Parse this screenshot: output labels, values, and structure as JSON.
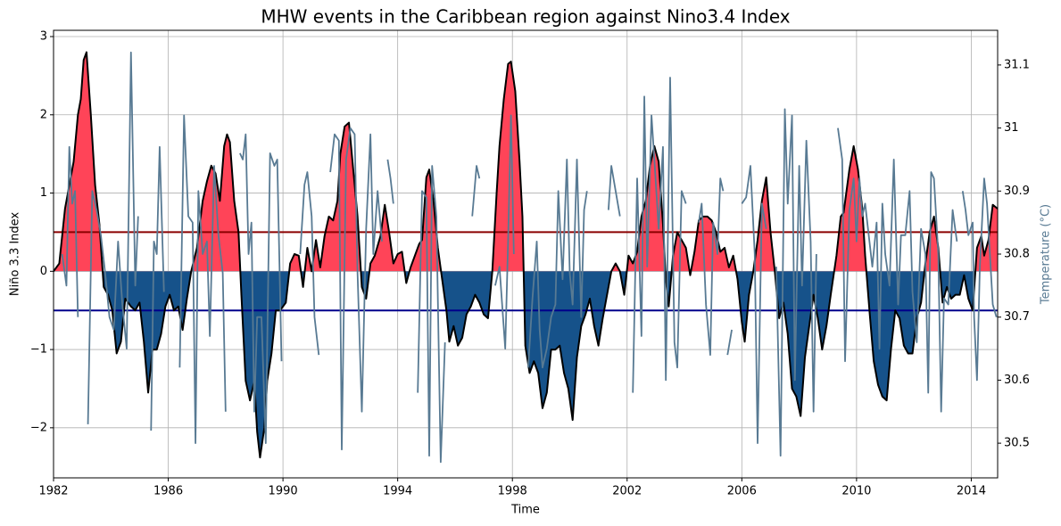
{
  "chart_data": {
    "type": "line",
    "title": "MHW events in the Caribbean region against Nino3.4 Index",
    "xlabel": "Time",
    "ylabel": "Niño 3.3 Index",
    "y2label": "Temperature (°C)",
    "y2label_color": "#587a93",
    "xlim": [
      1982,
      2014.92
    ],
    "xticks": [
      1982,
      1986,
      1990,
      1994,
      1998,
      2002,
      2006,
      2010,
      2014
    ],
    "ylim": [
      -2.64,
      3.08
    ],
    "yticks": [
      {
        "value": -2,
        "label": "−2"
      },
      {
        "value": -1,
        "label": "−1"
      },
      0,
      1,
      2,
      3
    ],
    "y2lim": [
      30.445,
      31.155
    ],
    "y2ticks": [
      30.5,
      30.6,
      30.7,
      30.8,
      30.9,
      31.0,
      31.1
    ],
    "grid": true,
    "hlines": [
      {
        "value": 0.5,
        "color": "#8b0000"
      },
      {
        "value": -0.5,
        "color": "#00008b"
      }
    ],
    "series": [
      {
        "name": "Niño 3.3 Index",
        "color": "#000000",
        "fill": {
          "positive": "#ff4458",
          "negative": "#16528a"
        },
        "x": [
          1982.0,
          1982.2,
          1982.4,
          1982.55,
          1982.7,
          1982.85,
          1982.95,
          1983.05,
          1983.15,
          1983.3,
          1983.45,
          1983.6,
          1983.75,
          1983.9,
          1984.05,
          1984.2,
          1984.35,
          1984.5,
          1984.7,
          1984.85,
          1985.0,
          1985.15,
          1985.3,
          1985.45,
          1985.6,
          1985.75,
          1985.9,
          1986.05,
          1986.2,
          1986.35,
          1986.5,
          1986.65,
          1986.8,
          1987.0,
          1987.2,
          1987.35,
          1987.5,
          1987.65,
          1987.8,
          1987.95,
          1988.05,
          1988.15,
          1988.3,
          1988.45,
          1988.55,
          1988.7,
          1988.85,
          1989.0,
          1989.1,
          1989.2,
          1989.35,
          1989.45,
          1989.6,
          1989.75,
          1989.9,
          1990.1,
          1990.25,
          1990.4,
          1990.55,
          1990.7,
          1990.85,
          1991.0,
          1991.15,
          1991.3,
          1991.45,
          1991.6,
          1991.75,
          1991.9,
          1992.0,
          1992.15,
          1992.3,
          1992.45,
          1992.6,
          1992.75,
          1992.9,
          1993.05,
          1993.2,
          1993.4,
          1993.55,
          1993.7,
          1993.85,
          1994.0,
          1994.15,
          1994.3,
          1994.45,
          1994.6,
          1994.75,
          1994.85,
          1995.0,
          1995.1,
          1995.25,
          1995.4,
          1995.55,
          1995.7,
          1995.8,
          1995.95,
          1996.1,
          1996.25,
          1996.4,
          1996.55,
          1996.7,
          1996.85,
          1997.0,
          1997.15,
          1997.3,
          1997.45,
          1997.55,
          1997.7,
          1997.85,
          1997.95,
          1998.1,
          1998.25,
          1998.35,
          1998.45,
          1998.6,
          1998.75,
          1998.9,
          1999.05,
          1999.2,
          1999.35,
          1999.5,
          1999.65,
          1999.8,
          1999.95,
          2000.1,
          2000.25,
          2000.4,
          2000.55,
          2000.7,
          2000.85,
          2001.0,
          2001.15,
          2001.3,
          2001.45,
          2001.6,
          2001.75,
          2001.9,
          2002.05,
          2002.2,
          2002.35,
          2002.5,
          2002.65,
          2002.8,
          2002.95,
          2003.1,
          2003.25,
          2003.35,
          2003.45,
          2003.6,
          2003.75,
          2003.9,
          2004.05,
          2004.2,
          2004.35,
          2004.5,
          2004.65,
          2004.8,
          2004.95,
          2005.1,
          2005.25,
          2005.4,
          2005.55,
          2005.7,
          2005.85,
          2006.0,
          2006.1,
          2006.25,
          2006.4,
          2006.55,
          2006.7,
          2006.85,
          2007.0,
          2007.15,
          2007.3,
          2007.45,
          2007.6,
          2007.75,
          2007.9,
          2008.05,
          2008.2,
          2008.35,
          2008.5,
          2008.65,
          2008.8,
          2008.95,
          2009.1,
          2009.3,
          2009.45,
          2009.55,
          2009.75,
          2009.9,
          2010.05,
          2010.2,
          2010.3,
          2010.45,
          2010.6,
          2010.75,
          2010.9,
          2011.05,
          2011.2,
          2011.35,
          2011.5,
          2011.65,
          2011.8,
          2011.95,
          2012.1,
          2012.25,
          2012.4,
          2012.55,
          2012.7,
          2012.85,
          2013.0,
          2013.15,
          2013.3,
          2013.45,
          2013.6,
          2013.75,
          2013.9,
          2014.05,
          2014.2,
          2014.35,
          2014.45,
          2014.6,
          2014.75,
          2014.92
        ],
        "values": [
          0.0,
          0.1,
          0.8,
          1.1,
          1.4,
          2.0,
          2.2,
          2.7,
          2.8,
          2.0,
          1.1,
          0.6,
          -0.2,
          -0.3,
          -0.5,
          -1.05,
          -0.9,
          -0.35,
          -0.45,
          -0.5,
          -0.4,
          -0.9,
          -1.55,
          -1.0,
          -1.0,
          -0.8,
          -0.45,
          -0.3,
          -0.5,
          -0.45,
          -0.75,
          -0.35,
          0.0,
          0.3,
          0.9,
          1.15,
          1.35,
          1.25,
          0.9,
          1.6,
          1.75,
          1.65,
          0.9,
          0.5,
          -0.3,
          -1.4,
          -1.65,
          -1.4,
          -2.05,
          -2.38,
          -2.0,
          -1.4,
          -1.05,
          -0.5,
          -0.5,
          -0.4,
          0.1,
          0.22,
          0.2,
          -0.2,
          0.3,
          0.0,
          0.4,
          0.05,
          0.45,
          0.7,
          0.65,
          0.9,
          1.5,
          1.85,
          1.9,
          1.3,
          0.7,
          -0.2,
          -0.35,
          0.1,
          0.2,
          0.45,
          0.85,
          0.5,
          0.1,
          0.22,
          0.25,
          -0.15,
          0.05,
          0.2,
          0.35,
          0.4,
          1.2,
          1.3,
          0.9,
          0.3,
          -0.1,
          -0.5,
          -0.9,
          -0.7,
          -0.95,
          -0.85,
          -0.55,
          -0.45,
          -0.3,
          -0.4,
          -0.55,
          -0.6,
          0.0,
          1.0,
          1.6,
          2.2,
          2.65,
          2.68,
          2.3,
          1.4,
          0.7,
          -0.95,
          -1.3,
          -1.15,
          -1.3,
          -1.75,
          -1.55,
          -1.0,
          -1.0,
          -0.95,
          -1.3,
          -1.5,
          -1.9,
          -1.1,
          -0.7,
          -0.55,
          -0.35,
          -0.7,
          -0.95,
          -0.6,
          -0.3,
          0.0,
          0.1,
          0.0,
          -0.3,
          0.2,
          0.1,
          0.25,
          0.7,
          0.9,
          1.35,
          1.6,
          1.4,
          0.6,
          -0.1,
          -0.45,
          0.2,
          0.5,
          0.4,
          0.3,
          -0.05,
          0.25,
          0.65,
          0.7,
          0.7,
          0.65,
          0.5,
          0.25,
          0.3,
          0.05,
          0.2,
          -0.1,
          -0.65,
          -0.9,
          -0.3,
          0.0,
          0.4,
          0.9,
          1.2,
          0.5,
          0.0,
          -0.6,
          -0.4,
          -0.8,
          -1.5,
          -1.6,
          -1.85,
          -1.1,
          -0.7,
          -0.3,
          -0.6,
          -1.0,
          -0.7,
          -0.3,
          0.2,
          0.7,
          0.75,
          1.3,
          1.6,
          1.3,
          0.8,
          0.2,
          -0.5,
          -1.15,
          -1.45,
          -1.6,
          -1.65,
          -1.0,
          -0.5,
          -0.6,
          -0.95,
          -1.05,
          -1.05,
          -0.6,
          -0.4,
          0.1,
          0.5,
          0.7,
          0.3,
          -0.4,
          -0.2,
          -0.35,
          -0.3,
          -0.3,
          -0.05,
          -0.35,
          -0.5,
          0.3,
          0.45,
          0.2,
          0.4,
          0.85,
          0.8
        ]
      },
      {
        "name": "Temperature (°C)",
        "color": "#587a93",
        "axis": "y2",
        "x": [
          1982.3,
          1982.45,
          1982.55,
          1982.65,
          1982.75,
          1982.85,
          1982.95,
          1983.2,
          1983.35,
          1983.5,
          1983.65,
          1983.8,
          1983.95,
          1984.1,
          1984.25,
          1984.4,
          1984.55,
          1984.7,
          1984.85,
          1984.95,
          1985.05,
          1985.4,
          1985.5,
          1985.6,
          1985.7,
          1985.85,
          1986.0,
          1986.4,
          1986.55,
          1986.7,
          1986.85,
          1986.95,
          1987.05,
          1987.2,
          1987.35,
          1987.45,
          1987.6,
          1987.75,
          1987.9,
          1988.0,
          1988.1,
          1988.5,
          1988.6,
          1988.7,
          1988.8,
          1988.9,
          1989.0,
          1989.1,
          1989.25,
          1989.4,
          1989.55,
          1989.7,
          1989.8,
          1989.95,
          1990.05,
          1990.6,
          1990.75,
          1990.85,
          1991.0,
          1991.1,
          1991.25,
          1991.35,
          1991.65,
          1991.8,
          1991.95,
          1992.05,
          1992.2,
          1992.35,
          1992.5,
          1992.6,
          1992.75,
          1992.9,
          1993.05,
          1993.15,
          1993.3,
          1993.45,
          1993.55,
          1993.65,
          1993.75,
          1993.85,
          1993.95,
          1994.7,
          1994.85,
          1995.0,
          1995.1,
          1995.2,
          1995.35,
          1995.5,
          1995.65,
          1995.75,
          1996.6,
          1996.75,
          1996.85,
          1996.95,
          1997.4,
          1997.55,
          1997.75,
          1997.85,
          1997.95,
          1998.05,
          1998.2,
          1998.55,
          1998.7,
          1998.85,
          1998.95,
          1999.05,
          1999.2,
          1999.35,
          1999.5,
          1999.6,
          1999.75,
          1999.9,
          2000.0,
          2000.1,
          2000.25,
          2000.4,
          2000.5,
          2000.6,
          2000.75,
          2001.35,
          2001.45,
          2001.6,
          2001.75,
          2001.85,
          2002.2,
          2002.35,
          2002.5,
          2002.6,
          2002.7,
          2002.85,
          2002.95,
          2003.1,
          2003.25,
          2003.35,
          2003.5,
          2003.65,
          2003.75,
          2003.9,
          2004.05,
          2004.2,
          2004.5,
          2004.6,
          2004.75,
          2004.9,
          2005.0,
          2005.15,
          2005.25,
          2005.35,
          2005.45,
          2005.5,
          2005.65,
          2005.75,
          2006.0,
          2006.15,
          2006.3,
          2006.45,
          2006.55,
          2006.7,
          2006.85,
          2006.95,
          2007.2,
          2007.35,
          2007.5,
          2007.6,
          2007.75,
          2007.85,
          2008.0,
          2008.1,
          2008.25,
          2008.4,
          2008.5,
          2008.6,
          2008.75,
          2009.35,
          2009.5,
          2009.6,
          2009.75,
          2009.9,
          2010.0,
          2010.1,
          2010.2,
          2010.3,
          2010.45,
          2010.55,
          2010.7,
          2010.8,
          2010.9,
          2011.0,
          2011.15,
          2011.3,
          2011.45,
          2011.55,
          2011.7,
          2011.85,
          2011.95,
          2012.1,
          2012.25,
          2012.4,
          2012.5,
          2012.6,
          2012.7,
          2012.85,
          2012.95,
          2013.05,
          2013.2,
          2013.35,
          2013.5,
          2013.65,
          2013.7,
          2013.8,
          2013.9,
          2014.05,
          2014.1,
          2014.2,
          2014.3,
          2014.45,
          2014.55,
          2014.65,
          2014.75,
          2014.88
        ],
        "values": [
          30.8,
          30.75,
          30.97,
          30.88,
          30.9,
          30.7,
          null,
          30.53,
          30.9,
          30.87,
          30.83,
          30.77,
          30.7,
          30.68,
          30.82,
          30.72,
          30.65,
          31.12,
          30.75,
          30.86,
          null,
          30.52,
          30.82,
          30.8,
          30.97,
          30.74,
          null,
          30.62,
          31.02,
          30.86,
          30.85,
          30.5,
          30.9,
          30.8,
          30.82,
          30.67,
          30.94,
          30.83,
          30.77,
          30.55,
          null,
          30.96,
          30.95,
          30.99,
          30.8,
          30.85,
          30.55,
          30.7,
          30.7,
          30.5,
          30.96,
          30.94,
          30.95,
          30.63,
          null,
          30.8,
          30.91,
          30.93,
          30.86,
          30.7,
          30.64,
          null,
          30.93,
          30.99,
          30.98,
          30.49,
          30.95,
          31.0,
          30.99,
          30.77,
          30.55,
          30.84,
          30.99,
          30.8,
          30.9,
          30.82,
          null,
          30.95,
          30.92,
          30.88,
          null,
          30.58,
          30.9,
          30.89,
          30.48,
          30.94,
          30.86,
          30.47,
          30.66,
          null,
          30.86,
          30.94,
          30.92,
          null,
          30.75,
          30.78,
          30.65,
          30.82,
          31.02,
          30.8,
          null,
          30.62,
          30.73,
          30.82,
          30.68,
          30.62,
          30.65,
          30.7,
          30.72,
          30.9,
          30.76,
          30.95,
          30.77,
          30.72,
          30.95,
          30.7,
          30.87,
          30.9,
          null,
          30.87,
          30.94,
          30.9,
          30.86,
          null,
          30.58,
          30.92,
          30.67,
          31.05,
          30.78,
          31.02,
          30.95,
          30.84,
          30.97,
          30.6,
          31.08,
          30.66,
          30.62,
          30.9,
          30.88,
          null,
          30.85,
          30.88,
          30.72,
          30.64,
          30.85,
          30.8,
          30.92,
          30.9,
          null,
          30.64,
          30.68,
          null,
          30.88,
          30.89,
          30.94,
          30.8,
          30.5,
          30.88,
          30.84,
          null,
          30.78,
          30.48,
          31.03,
          30.88,
          31.02,
          30.6,
          30.94,
          30.75,
          30.98,
          30.82,
          30.55,
          30.8,
          null,
          31.0,
          30.95,
          30.63,
          30.87,
          30.92,
          30.82,
          30.92,
          30.86,
          30.88,
          30.82,
          30.78,
          30.85,
          30.65,
          30.88,
          30.8,
          30.75,
          30.95,
          30.72,
          30.83,
          30.83,
          30.9,
          30.74,
          30.66,
          30.84,
          30.8,
          30.58,
          30.93,
          30.92,
          30.8,
          30.55,
          30.73,
          30.72,
          30.87,
          30.82,
          null,
          30.9,
          30.87,
          30.83,
          30.85,
          30.7,
          30.6,
          30.78,
          30.92,
          30.88,
          30.8,
          30.72,
          30.7
        ]
      }
    ]
  }
}
